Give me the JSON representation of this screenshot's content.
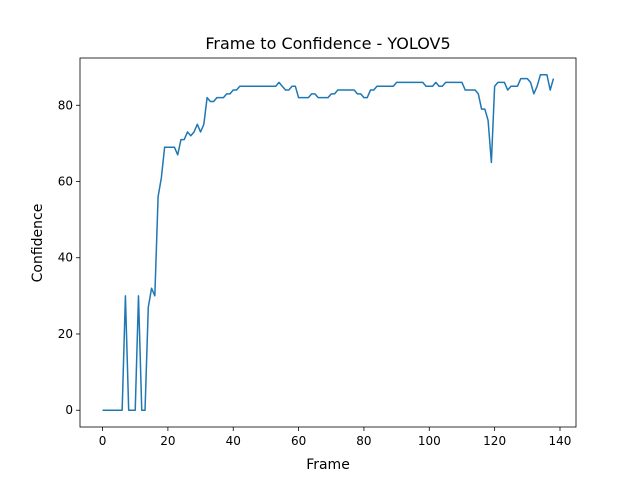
{
  "chart_data": {
    "type": "line",
    "title": "Frame to Confidence - YOLOV5",
    "x_label": "Frame",
    "y_label": "Confidence",
    "x": [
      0,
      1,
      2,
      3,
      4,
      5,
      6,
      7,
      8,
      9,
      10,
      11,
      12,
      13,
      14,
      15,
      16,
      17,
      18,
      19,
      20,
      21,
      22,
      23,
      24,
      25,
      26,
      27,
      28,
      29,
      30,
      31,
      32,
      33,
      34,
      35,
      36,
      37,
      38,
      39,
      40,
      41,
      42,
      43,
      44,
      45,
      46,
      47,
      48,
      49,
      50,
      51,
      52,
      53,
      54,
      55,
      56,
      57,
      58,
      59,
      60,
      61,
      62,
      63,
      64,
      65,
      66,
      67,
      68,
      69,
      70,
      71,
      72,
      73,
      74,
      75,
      76,
      77,
      78,
      79,
      80,
      81,
      82,
      83,
      84,
      85,
      86,
      87,
      88,
      89,
      90,
      91,
      92,
      93,
      94,
      95,
      96,
      97,
      98,
      99,
      100,
      101,
      102,
      103,
      104,
      105,
      106,
      107,
      108,
      109,
      110,
      111,
      112,
      113,
      114,
      115,
      116,
      117,
      118,
      119,
      120,
      121,
      122,
      123,
      124,
      125,
      126,
      127,
      128,
      129,
      130,
      131,
      132,
      133,
      134,
      135,
      136,
      137,
      138
    ],
    "series": [
      {
        "color": "#1f77b4",
        "values": [
          0,
          0,
          0,
          0,
          0,
          0,
          0,
          30,
          0,
          0,
          0,
          30,
          0,
          0,
          27,
          32,
          30,
          56,
          61,
          69,
          69,
          69,
          69,
          67,
          71,
          71,
          73,
          72,
          73,
          75,
          73,
          75,
          82,
          81,
          81,
          82,
          82,
          82,
          83,
          83,
          84,
          84,
          85,
          85,
          85,
          85,
          85,
          85,
          85,
          85,
          85,
          85,
          85,
          85,
          86,
          85,
          84,
          84,
          85,
          85,
          82,
          82,
          82,
          82,
          83,
          83,
          82,
          82,
          82,
          82,
          83,
          83,
          84,
          84,
          84,
          84,
          84,
          84,
          83,
          83,
          82,
          82,
          84,
          84,
          85,
          85,
          85,
          85,
          85,
          85,
          86,
          86,
          86,
          86,
          86,
          86,
          86,
          86,
          86,
          85,
          85,
          85,
          86,
          85,
          85,
          86,
          86,
          86,
          86,
          86,
          86,
          84,
          84,
          84,
          84,
          83,
          79,
          79,
          76,
          65,
          85,
          86,
          86,
          86,
          84,
          85,
          85,
          85,
          87,
          87,
          87,
          86,
          83,
          85,
          88,
          88,
          88,
          84,
          87
        ]
      }
    ],
    "xlim": [
      -6.9,
      144.9
    ],
    "ylim": [
      -4.4,
      92.4
    ],
    "xticks": [
      0,
      20,
      40,
      60,
      80,
      100,
      120,
      140
    ],
    "yticks": [
      0,
      20,
      40,
      60,
      80
    ]
  }
}
